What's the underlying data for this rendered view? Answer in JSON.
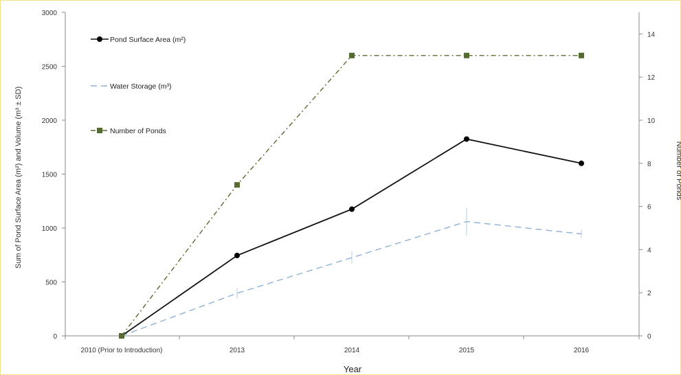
{
  "chart_data": {
    "type": "line",
    "categories": [
      "2010 (Prior to Introduction)",
      "2013",
      "2014",
      "2015",
      "2016"
    ],
    "xlabel": "Year",
    "ylabel": "Sum of Pond Surface Area (m²) and Volume (m³ ± SD)",
    "y2label": "Number of Ponds",
    "ylim": [
      0,
      3000
    ],
    "y2lim": [
      0,
      15
    ],
    "yticks": [
      0,
      500,
      1000,
      1500,
      2000,
      2500,
      3000
    ],
    "y2ticks": [
      0,
      2,
      4,
      6,
      8,
      10,
      12,
      14
    ],
    "grid": false,
    "legend_position": "top-left",
    "series": [
      {
        "name": "Pond Surface Area (m²)",
        "axis": "left",
        "values": [
          0,
          745,
          1175,
          1825,
          1600
        ],
        "color": "#111111",
        "style": "solid",
        "marker": "circle"
      },
      {
        "name": "Water Storage  (m³)",
        "axis": "left",
        "values": [
          0,
          395,
          725,
          1060,
          945
        ],
        "errors": [
          0,
          50,
          60,
          130,
          40
        ],
        "color": "#8fb0d6",
        "style": "dashed",
        "marker": "none"
      },
      {
        "name": "Number of Ponds",
        "axis": "right",
        "values": [
          0,
          7,
          13,
          13,
          13
        ],
        "color": "#556b2f",
        "style": "dashdot",
        "marker": "square"
      }
    ]
  }
}
